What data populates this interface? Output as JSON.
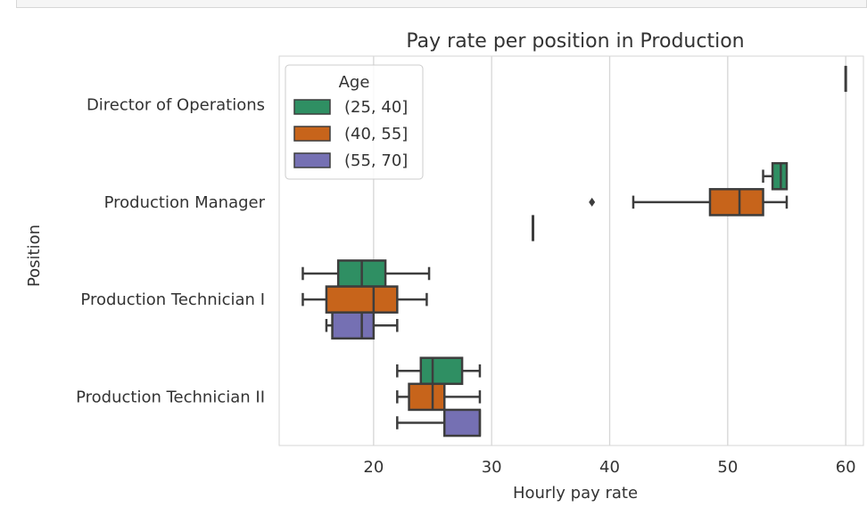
{
  "chart_data": {
    "type": "box",
    "orientation": "horizontal",
    "title": "Pay rate per position in Production",
    "xlabel": "Hourly pay rate",
    "ylabel": "Position",
    "xlim": [
      12,
      61.5
    ],
    "xticks": [
      20,
      30,
      40,
      50,
      60
    ],
    "categories": [
      "Director of Operations",
      "Production Manager",
      "Production Technician I",
      "Production Technician II"
    ],
    "grid": "vertical",
    "legend": {
      "title": "Age",
      "placement": "top-left",
      "entries": [
        "(25, 40]",
        "(40, 55]",
        "(55, 70]"
      ]
    },
    "series": [
      {
        "name": "(25, 40]",
        "color": "#2f8f63",
        "boxes": [
          {
            "category": "Director of Operations",
            "min": 60,
            "q1": 60,
            "median": 60,
            "q3": 60,
            "max": 60
          },
          {
            "category": "Production Manager",
            "min": 53,
            "q1": 53.8,
            "median": 54.5,
            "q3": 55,
            "max": 55
          },
          {
            "category": "Production Technician I",
            "min": 14,
            "q1": 17,
            "median": 19,
            "q3": 21,
            "max": 24.7
          },
          {
            "category": "Production Technician II",
            "min": 22,
            "q1": 24,
            "median": 25,
            "q3": 27.5,
            "max": 29
          }
        ]
      },
      {
        "name": "(40, 55]",
        "color": "#c7641b",
        "boxes": [
          {
            "category": "Production Manager",
            "min": 42,
            "q1": 48.5,
            "median": 51,
            "q3": 53,
            "max": 55,
            "outliers": [
              38.5
            ]
          },
          {
            "category": "Production Technician I",
            "min": 14,
            "q1": 16,
            "median": 20,
            "q3": 22,
            "max": 24.5
          },
          {
            "category": "Production Technician II",
            "min": 22,
            "q1": 23,
            "median": 25,
            "q3": 26,
            "max": 29
          }
        ]
      },
      {
        "name": "(55, 70]",
        "color": "#7570b3",
        "boxes": [
          {
            "category": "Production Manager",
            "min": 33.5,
            "q1": 33.5,
            "median": 33.5,
            "q3": 33.5,
            "max": 33.5
          },
          {
            "category": "Production Technician I",
            "min": 16,
            "q1": 16.5,
            "median": 19,
            "q3": 20,
            "max": 22
          },
          {
            "category": "Production Technician II",
            "min": 22,
            "q1": 26,
            "median": 29,
            "q3": 29,
            "max": 29
          }
        ]
      }
    ]
  }
}
